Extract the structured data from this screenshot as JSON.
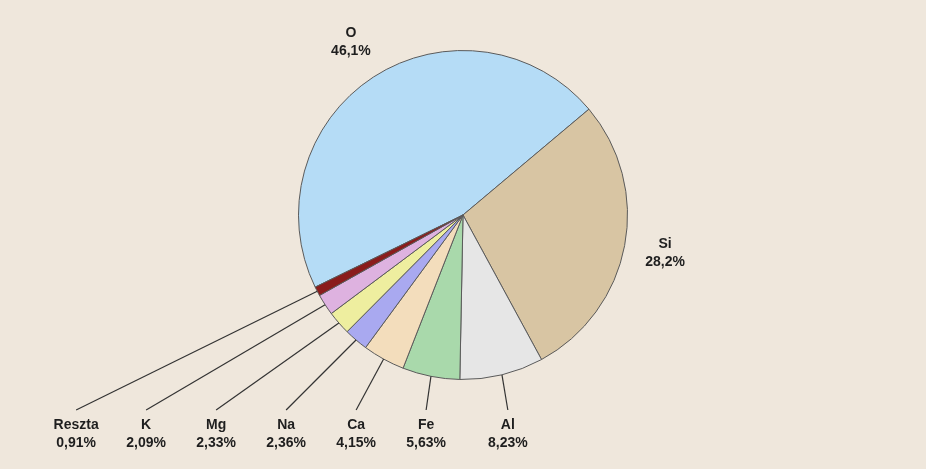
{
  "chart_data": {
    "type": "pie",
    "categories": [
      "O",
      "Si",
      "Al",
      "Fe",
      "Ca",
      "Na",
      "Mg",
      "K",
      "Reszta"
    ],
    "values": [
      46.1,
      28.2,
      8.23,
      5.63,
      4.15,
      2.36,
      2.33,
      2.09,
      0.91
    ],
    "value_labels": [
      "46,1%",
      "28,2%",
      "8,23%",
      "5,63%",
      "4,15%",
      "2,36%",
      "2,33%",
      "2,09%",
      "0,91%"
    ],
    "colors": [
      "#b5dcf6",
      "#d8c5a3",
      "#e6e6e6",
      "#a9d9ab",
      "#f3ddbc",
      "#a9a9f0",
      "#eeee9f",
      "#deb2e0",
      "#8a1c1c"
    ],
    "data_labels": true
  }
}
